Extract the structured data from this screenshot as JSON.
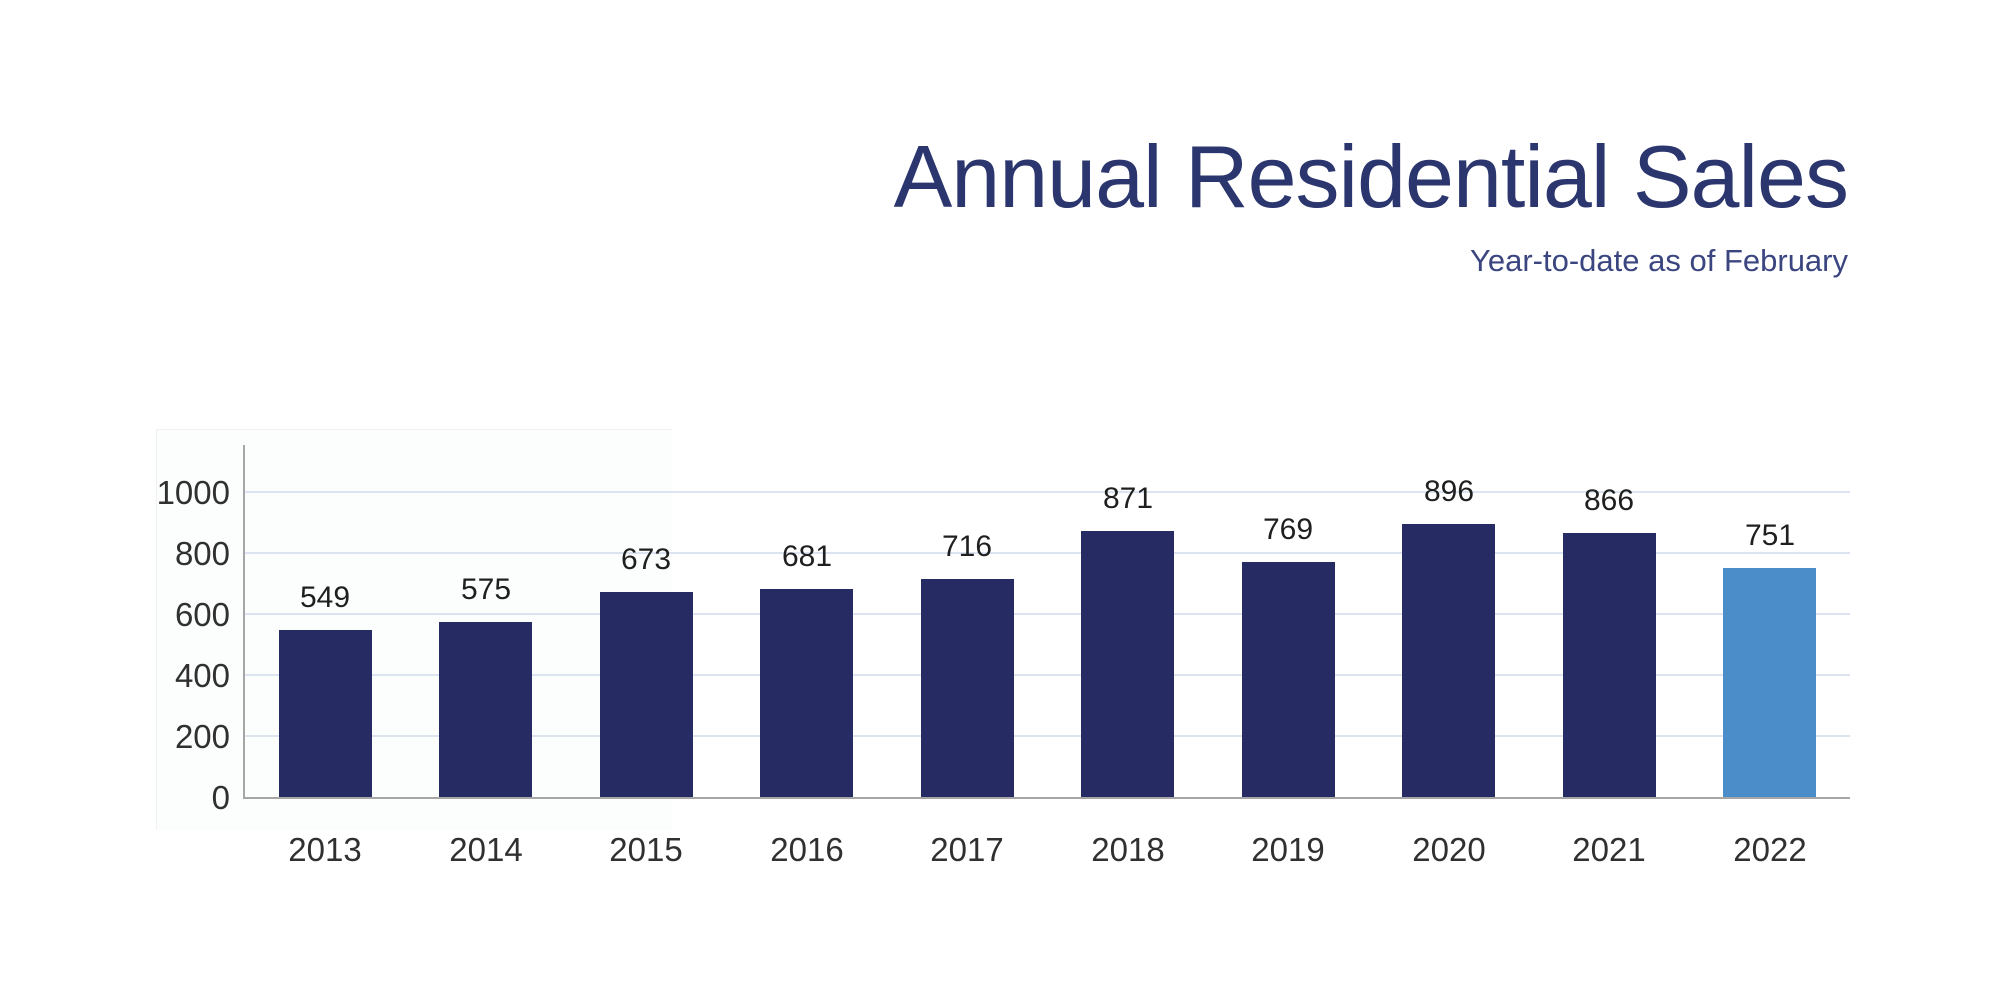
{
  "header": {
    "title": "Annual Residential Sales",
    "subtitle": "Year-to-date as of February",
    "title_color": "#2b356e",
    "subtitle_color": "#3b4680"
  },
  "chart_data": {
    "type": "bar",
    "title": "Annual Residential Sales",
    "subtitle": "Year-to-date as of February",
    "categories": [
      "2013",
      "2014",
      "2015",
      "2016",
      "2017",
      "2018",
      "2019",
      "2020",
      "2021",
      "2022"
    ],
    "values": [
      549,
      575,
      673,
      681,
      716,
      871,
      769,
      896,
      866,
      751
    ],
    "xlabel": "",
    "ylabel": "",
    "ylim": [
      0,
      1000
    ],
    "yticks": [
      0,
      200,
      400,
      600,
      800,
      1000
    ],
    "grid": true,
    "legend": "none",
    "data_labels": true,
    "colors": {
      "bar": "#262c63",
      "highlight_bar": "#4a8dc8",
      "gridline": "#dce3f1",
      "axis": "#a6a6a6",
      "value_label": "#1f1f1f",
      "tick_label": "#303030"
    },
    "highlight_index": 9
  }
}
